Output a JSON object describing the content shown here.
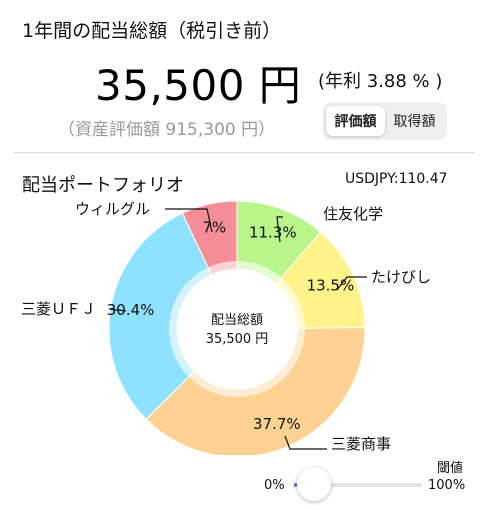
{
  "header": {
    "title": "1年間の配当総額（税引き前）",
    "total_amount": "35,500 円",
    "yield_text": "(年利 3.88 % )",
    "asset_value": "（資産評価額 915,300 円）"
  },
  "segmented_control": {
    "options": [
      "評価額",
      "取得額"
    ],
    "selected_index": 0
  },
  "portfolio": {
    "title": "配当ポートフォリオ",
    "usd_rate": "USDJPY:110.47",
    "center_title": "配当総額",
    "center_value": "35,500 円"
  },
  "chart_data": {
    "type": "donut",
    "slices": [
      {
        "name": "住友化学",
        "label": "11.3%",
        "value": 11.3,
        "color": "#b9f58b"
      },
      {
        "name": "たけびし",
        "label": "13.5%",
        "value": 13.5,
        "color": "#fff38a"
      },
      {
        "name": "三菱商事",
        "label": "37.7%",
        "value": 37.7,
        "color": "#ffd192"
      },
      {
        "name": "三菱ＵＦＪ",
        "label": "30.4%",
        "value": 30.4,
        "color": "#8fe2ff"
      },
      {
        "name": "ウィルグル",
        "label": "7%",
        "value": 7.0,
        "color": "#f68e97"
      }
    ]
  },
  "threshold": {
    "label": "閾値",
    "min_label": "0%",
    "max_label": "100%",
    "value_percent": 0
  }
}
